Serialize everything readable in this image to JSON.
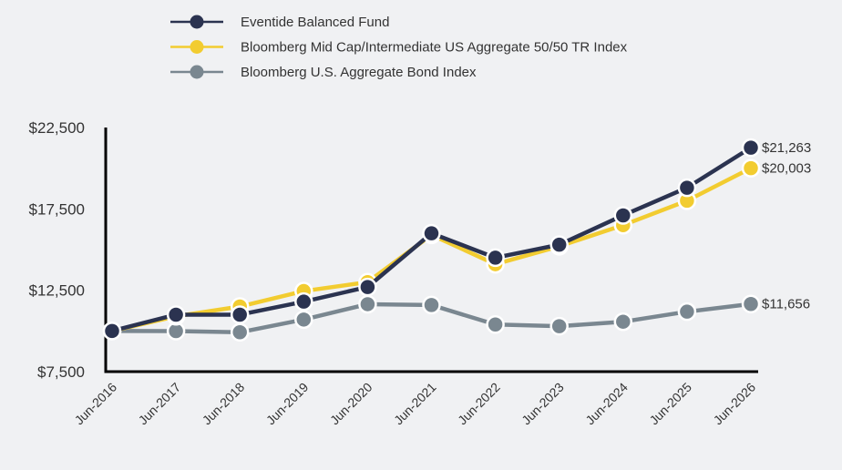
{
  "chart_data": {
    "type": "line",
    "categories": [
      "Jun-2016",
      "Jun-2017",
      "Jun-2018",
      "Jun-2019",
      "Jun-2020",
      "Jun-2021",
      "Jun-2022",
      "Jun-2023",
      "Jun-2024",
      "Jun-2025",
      "Jun-2026"
    ],
    "ylim": [
      7500,
      22500
    ],
    "y_ticks": [
      7500,
      12500,
      17500,
      22500
    ],
    "y_tick_labels": [
      "$7,500",
      "$12,500",
      "$17,500",
      "$22,500"
    ],
    "legend_position": "top-left",
    "grid": false,
    "series": [
      {
        "name": "Bloomberg U.S. Aggregate Bond Index",
        "color": "#7a8790",
        "end_label": "$11,656",
        "values": [
          10000,
          9991,
          9919,
          10700,
          11645,
          11591,
          10396,
          10291,
          10567,
          11184,
          11656
        ]
      },
      {
        "name": "Bloomberg Mid Cap/Intermediate US Aggregate 50/50 TR Index",
        "color": "#f2cc30",
        "end_label": "$20,003",
        "values": [
          10000,
          10900,
          11500,
          12450,
          13000,
          15900,
          14100,
          15200,
          16500,
          18000,
          20003
        ]
      },
      {
        "name": "Eventide Balanced Fund",
        "color": "#2b3350",
        "end_label": "$21,263",
        "values": [
          10000,
          11000,
          11000,
          11800,
          12700,
          16000,
          14500,
          15300,
          17100,
          18800,
          21263
        ]
      }
    ],
    "legend_order": [
      2,
      1,
      0
    ]
  }
}
